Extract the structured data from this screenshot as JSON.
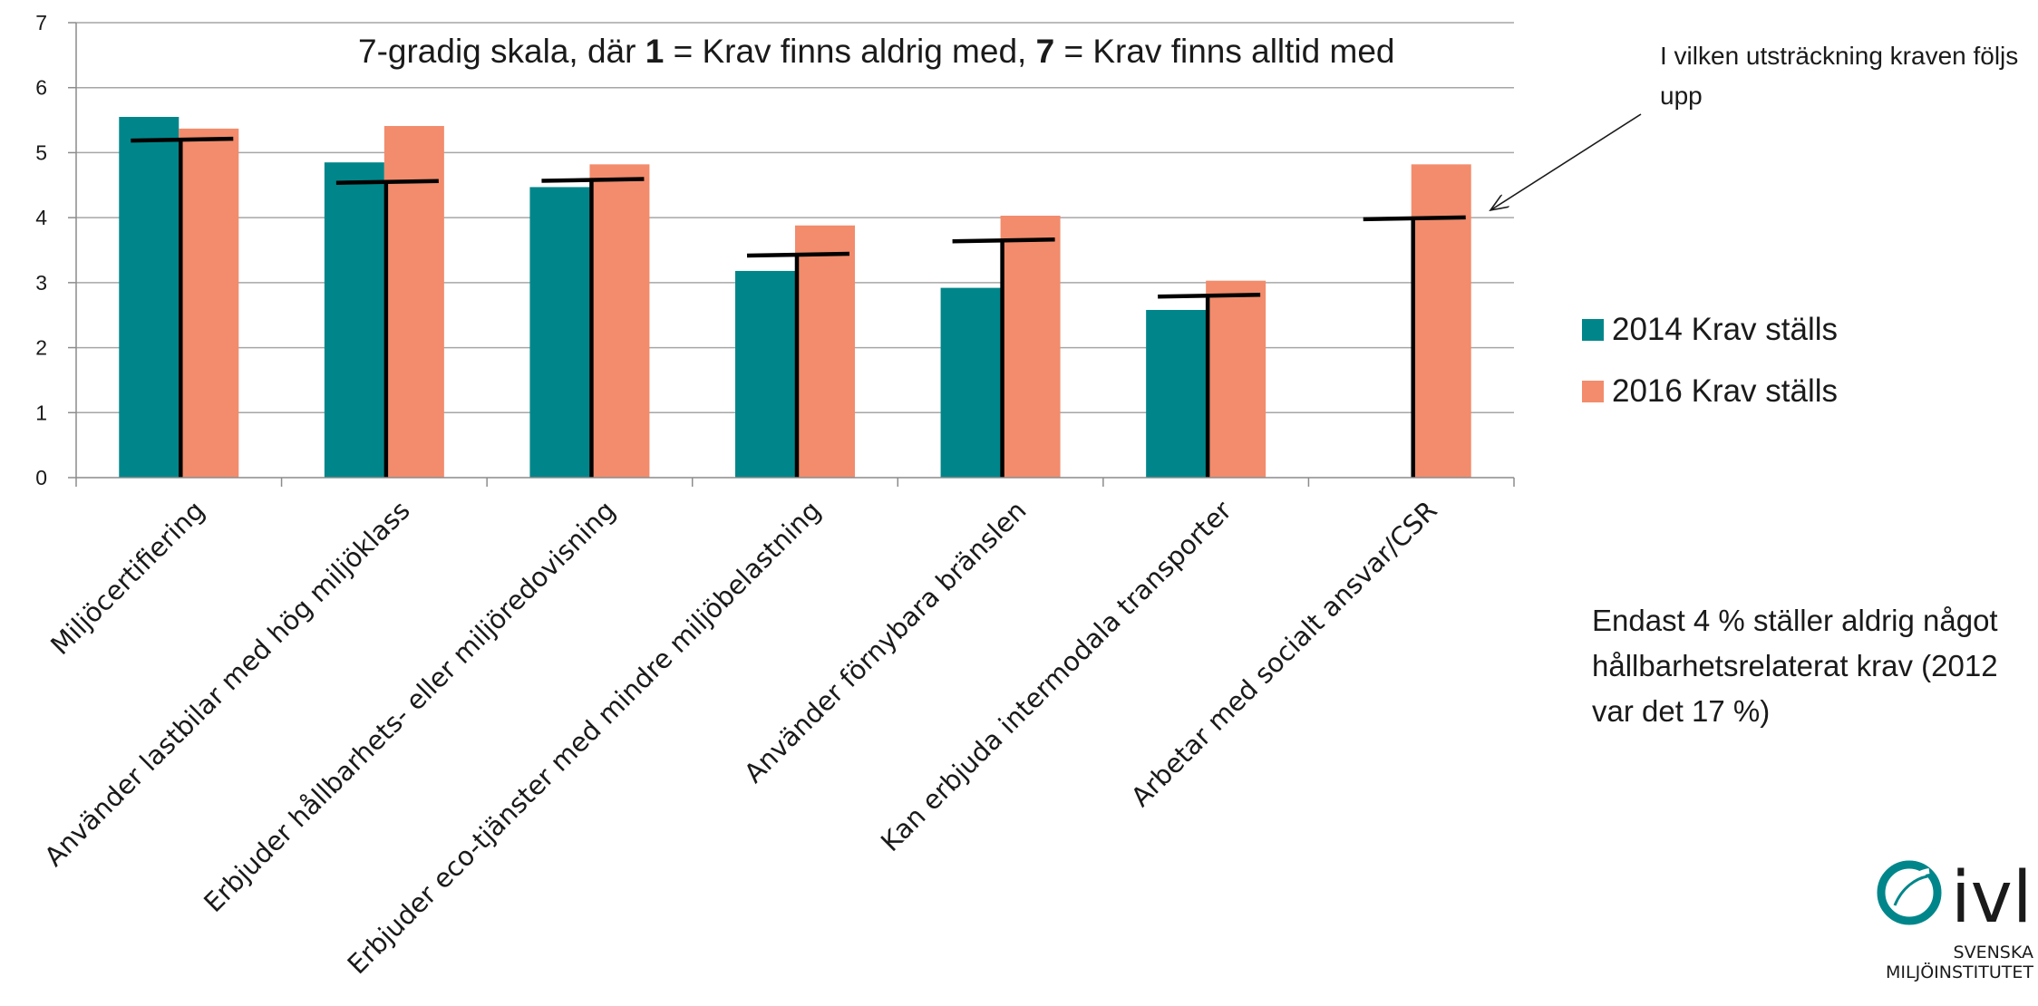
{
  "chart_data": {
    "type": "bar",
    "title": "",
    "subtitle": {
      "part1": "7-gradig skala, där ",
      "bold1": "1",
      "part2": " = Krav finns aldrig med, ",
      "bold2": "7",
      "part3": " = Krav finns alltid med"
    },
    "xlabel": "",
    "ylabel": "",
    "ylim": [
      0,
      7
    ],
    "yticks": [
      0,
      1,
      2,
      3,
      4,
      5,
      6,
      7
    ],
    "grid": true,
    "legend_position": "right",
    "categories": [
      "Miljöcertifiering",
      "Använder lastbilar med hög miljöklass",
      "Erbjuder hållbarhets- eller miljöredovisning",
      "Erbjuder eco-tjänster med mindre miljöbelastning",
      "Använder förnybara bränslen",
      "Kan erbjuda intermodala transporter",
      "Arbetar med socialt ansvar/CSR"
    ],
    "series": [
      {
        "name": "2014 Krav ställs",
        "color": "#00868a",
        "values": [
          5.55,
          4.85,
          4.47,
          3.18,
          2.92,
          2.58,
          null
        ]
      },
      {
        "name": "2016 Krav ställs",
        "color": "#f28c6c",
        "values": [
          5.37,
          5.41,
          4.82,
          3.88,
          4.03,
          3.03,
          4.82
        ]
      }
    ],
    "followup_markers": {
      "name": "I vilken utsträckning kraven följs upp",
      "color": "#000000",
      "values": [
        5.2,
        4.55,
        4.58,
        3.43,
        3.65,
        2.8,
        3.99
      ]
    }
  },
  "annotation": {
    "text": "I vilken utsträckning kraven följs upp"
  },
  "footnote": {
    "text": "Endast 4 % ställer aldrig något hållbarhetsrelaterat krav (2012 var det 17 %)"
  },
  "logo": {
    "name": "ivl",
    "line1": "SVENSKA",
    "line2": "MILJÖINSTITUTET",
    "color": "#00868a"
  }
}
